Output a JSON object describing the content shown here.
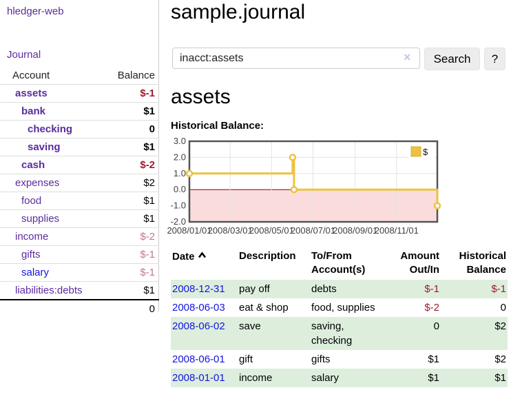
{
  "sidebar": {
    "brand": "hledger-web",
    "journal_link": "Journal",
    "headers": {
      "account": "Account",
      "balance": "Balance"
    },
    "rows": [
      {
        "account": "assets",
        "balance": "$-1"
      },
      {
        "account": "bank",
        "balance": "$1"
      },
      {
        "account": "checking",
        "balance": "0"
      },
      {
        "account": "saving",
        "balance": "$1"
      },
      {
        "account": "cash",
        "balance": "$-2"
      },
      {
        "account": "expenses",
        "balance": "$2"
      },
      {
        "account": "food",
        "balance": "$1"
      },
      {
        "account": "supplies",
        "balance": "$1"
      },
      {
        "account": "income",
        "balance": "$-2"
      },
      {
        "account": "gifts",
        "balance": "$-1"
      },
      {
        "account": "salary",
        "balance": "$-1"
      },
      {
        "account": "liabilities:debts",
        "balance": "$1"
      }
    ],
    "total": "0"
  },
  "header": {
    "title": "sample.journal"
  },
  "search": {
    "query": "inacct:assets",
    "clear_icon": "×",
    "button_label": "Search",
    "help_label": "?"
  },
  "account_page": {
    "title": "assets",
    "chart_label": "Historical Balance:"
  },
  "chart_data": {
    "type": "line",
    "step": true,
    "title": "Historical Balance",
    "series": [
      {
        "name": "$",
        "color": "#edc240",
        "points": [
          [
            "2008-01-01",
            1
          ],
          [
            "2008-06-01",
            2
          ],
          [
            "2008-06-03",
            0
          ],
          [
            "2008-12-31",
            -1
          ]
        ]
      }
    ],
    "x_range": [
      "2008-01-01",
      "2008-12-31"
    ],
    "x_ticks": [
      {
        "date": "2008-01-01",
        "label": "2008/01/01"
      },
      {
        "date": "2008-03-01",
        "label": "2008/03/01"
      },
      {
        "date": "2008-05-01",
        "label": "2008/05/01"
      },
      {
        "date": "2008-07-01",
        "label": "2008/07/01"
      },
      {
        "date": "2008-09-01",
        "label": "2008/09/01"
      },
      {
        "date": "2008-11-01",
        "label": "2008/11/01"
      }
    ],
    "y_ticks": [
      3,
      2,
      1,
      0,
      -1,
      -2
    ],
    "ylim": [
      -2,
      3
    ],
    "grid": true,
    "legend_position": "top-right",
    "legend_label": "$",
    "colors": {
      "grid": "#e3e3e3",
      "border": "#545454",
      "zero_line": "#8b0000",
      "negative_region": "#fbdcdc"
    }
  },
  "register": {
    "headers": {
      "date": "Date",
      "description": "Description",
      "accounts": "To/From Account(s)",
      "amount": "Amount Out/In",
      "balance": "Historical Balance"
    },
    "rows": [
      {
        "date": "2008-12-31",
        "description": "pay off",
        "accounts": "debts",
        "amount": "$-1",
        "balance": "$-1"
      },
      {
        "date": "2008-06-03",
        "description": "eat & shop",
        "accounts": "food, supplies",
        "amount": "$-2",
        "balance": "0"
      },
      {
        "date": "2008-06-02",
        "description": "save",
        "accounts": "saving, checking",
        "amount": "0",
        "balance": "$2"
      },
      {
        "date": "2008-06-01",
        "description": "gift",
        "accounts": "gifts",
        "amount": "$1",
        "balance": "$2"
      },
      {
        "date": "2008-01-01",
        "description": "income",
        "accounts": "salary",
        "amount": "$1",
        "balance": "$1"
      }
    ]
  }
}
